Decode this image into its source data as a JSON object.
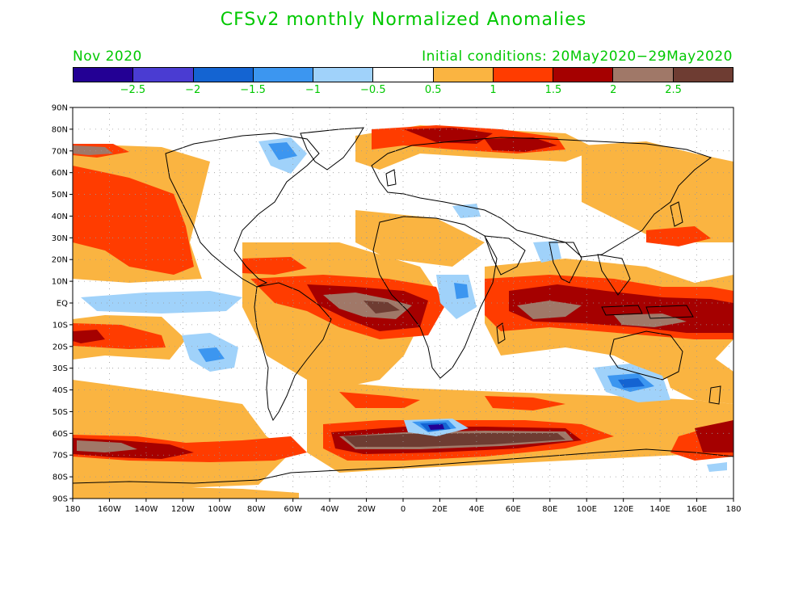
{
  "title": "CFSv2 monthly Normalized Anomalies",
  "month_label": "Nov 2020",
  "initial_conditions": "Initial conditions: 20May2020−29May2020",
  "colorbar": {
    "colors": [
      "#230094",
      "#4a3cd2",
      "#1464d2",
      "#3c96f0",
      "#a0d2fa",
      "#ffffff",
      "#fab441",
      "#ff3c00",
      "#a50000",
      "#a07868",
      "#6e3c32"
    ],
    "labels": [
      "−2.5",
      "−2",
      "−1.5",
      "−1",
      "−0.5",
      "0.5",
      "1",
      "1.5",
      "2",
      "2.5"
    ]
  },
  "map": {
    "lat_labels": [
      "90N",
      "80N",
      "70N",
      "60N",
      "50N",
      "40N",
      "30N",
      "20N",
      "10N",
      "EQ",
      "10S",
      "20S",
      "30S",
      "40S",
      "50S",
      "60S",
      "70S",
      "80S",
      "90S"
    ],
    "lon_labels": [
      "180",
      "160W",
      "140W",
      "120W",
      "100W",
      "80W",
      "60W",
      "40W",
      "20W",
      "0",
      "20E",
      "40E",
      "60E",
      "80E",
      "100E",
      "120E",
      "140E",
      "160E",
      "180"
    ]
  }
}
